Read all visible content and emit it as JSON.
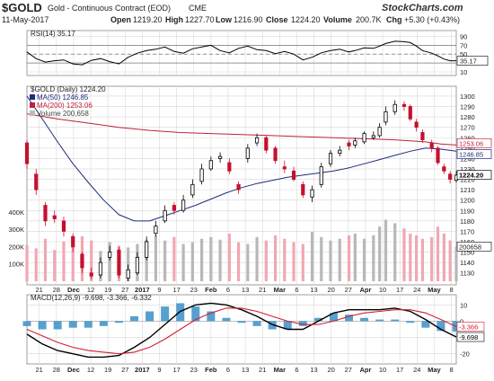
{
  "header": {
    "symbol": "$GOLD",
    "description": "Gold - Continuous Contract (EOD)",
    "exchange": "CME",
    "date": "11-May-2017",
    "open_label": "Open",
    "open": "1219.20",
    "high_label": "High",
    "high": "1227.70",
    "low_label": "Low",
    "low": "1216.90",
    "close_label": "Close",
    "close": "1224.20",
    "volume_label": "Volume",
    "volume": "200.7K",
    "change_label": "Chg",
    "change": "+5.30 (+0.43%)",
    "copyright": "© StockCharts.com",
    "logo_text": "StockCharts.com"
  },
  "chart_data": [
    {
      "type": "line",
      "panel": "rsi",
      "legend": [
        "RSI(14) 35.17"
      ],
      "y_ticks": [
        10,
        30,
        50,
        70,
        90
      ],
      "ylim": [
        10,
        95
      ],
      "reference_lines": [
        30,
        50,
        70
      ],
      "last_value_label": "35.17",
      "series": [
        {
          "name": "RSI(14)",
          "x": [
            0,
            3,
            6,
            9,
            12,
            15,
            18,
            21,
            24,
            27,
            30,
            33,
            36,
            39,
            42,
            45,
            48,
            51,
            54,
            57,
            60,
            63,
            66,
            69,
            72,
            75,
            78,
            81,
            84,
            87,
            90,
            93,
            96,
            99,
            102,
            105,
            107,
            110,
            113,
            115,
            117,
            120,
            123,
            125,
            127,
            129,
            132,
            134,
            136,
            138,
            140
          ],
          "values": [
            55,
            40,
            32,
            35,
            37,
            28,
            26,
            36,
            40,
            33,
            28,
            43,
            52,
            58,
            61,
            66,
            56,
            52,
            62,
            66,
            70,
            58,
            53,
            63,
            68,
            60,
            58,
            51,
            56,
            50,
            37,
            43,
            53,
            58,
            61,
            55,
            58,
            64,
            63,
            68,
            74,
            79,
            78,
            76,
            68,
            58,
            52,
            46,
            39,
            35,
            35
          ]
        }
      ]
    },
    {
      "type": "candlestick",
      "panel": "price",
      "legend": [
        "$GOLD (Daily) 1224.20",
        "MA(50) 1246.85",
        "MA(200) 1253.06",
        "Volume 200,658"
      ],
      "y_ticks": [
        1130,
        1140,
        1150,
        1160,
        1170,
        1180,
        1190,
        1200,
        1210,
        1220,
        1230,
        1240,
        1250,
        1260,
        1270,
        1280,
        1290,
        1300
      ],
      "ylim": [
        1122,
        1306
      ],
      "last_value_labels": [
        "1253.06",
        "1246.85",
        "1224.20"
      ],
      "volume_ticks": [
        "400K",
        "300K",
        "200K",
        "100K"
      ],
      "volume_last_label": "200658",
      "candles": {
        "x": [
          0,
          3,
          6,
          9,
          12,
          15,
          18,
          21,
          24,
          27,
          30,
          33,
          36,
          39,
          42,
          45,
          48,
          51,
          54,
          57,
          60,
          63,
          66,
          69,
          72,
          75,
          78,
          81,
          84,
          87,
          90,
          93,
          96,
          99,
          102,
          105,
          107,
          110,
          113,
          115,
          117,
          120,
          123,
          125,
          127,
          129,
          132,
          134,
          136,
          138,
          140
        ],
        "open": [
          1255,
          1225,
          1195,
          1185,
          1180,
          1165,
          1148,
          1130,
          1128,
          1145,
          1152,
          1125,
          1130,
          1145,
          1168,
          1180,
          1195,
          1190,
          1205,
          1218,
          1230,
          1240,
          1236,
          1215,
          1240,
          1255,
          1260,
          1250,
          1232,
          1228,
          1215,
          1203,
          1215,
          1235,
          1245,
          1255,
          1253,
          1256,
          1260,
          1262,
          1275,
          1285,
          1292,
          1290,
          1275,
          1265,
          1255,
          1250,
          1232,
          1225,
          1219
        ],
        "close": [
          1235,
          1210,
          1180,
          1182,
          1170,
          1155,
          1135,
          1127,
          1140,
          1150,
          1128,
          1133,
          1145,
          1160,
          1175,
          1190,
          1190,
          1200,
          1215,
          1230,
          1238,
          1242,
          1228,
          1210,
          1250,
          1260,
          1248,
          1238,
          1230,
          1220,
          1205,
          1210,
          1232,
          1245,
          1248,
          1252,
          1257,
          1264,
          1262,
          1270,
          1285,
          1292,
          1290,
          1278,
          1270,
          1258,
          1250,
          1236,
          1228,
          1220,
          1224
        ],
        "high": [
          1258,
          1230,
          1198,
          1190,
          1184,
          1168,
          1150,
          1135,
          1145,
          1156,
          1155,
          1138,
          1150,
          1165,
          1180,
          1195,
          1198,
          1205,
          1220,
          1235,
          1242,
          1246,
          1240,
          1218,
          1254,
          1264,
          1262,
          1252,
          1238,
          1232,
          1218,
          1214,
          1236,
          1248,
          1252,
          1258,
          1260,
          1266,
          1266,
          1274,
          1290,
          1296,
          1295,
          1292,
          1278,
          1268,
          1258,
          1252,
          1235,
          1228,
          1228
        ],
        "low": [
          1230,
          1205,
          1175,
          1178,
          1165,
          1150,
          1130,
          1124,
          1125,
          1142,
          1125,
          1122,
          1128,
          1142,
          1165,
          1178,
          1186,
          1188,
          1202,
          1215,
          1228,
          1236,
          1225,
          1206,
          1236,
          1252,
          1245,
          1235,
          1226,
          1218,
          1202,
          1198,
          1212,
          1232,
          1242,
          1248,
          1250,
          1254,
          1258,
          1260,
          1272,
          1282,
          1286,
          1276,
          1266,
          1255,
          1246,
          1234,
          1225,
          1216,
          1217
        ]
      },
      "volume_values": [
        210,
        190,
        245,
        180,
        230,
        215,
        260,
        235,
        175,
        225,
        205,
        195,
        215,
        240,
        265,
        235,
        255,
        215,
        225,
        245,
        255,
        240,
        275,
        225,
        215,
        255,
        235,
        265,
        245,
        225,
        215,
        285,
        255,
        235,
        245,
        265,
        275,
        245,
        265,
        315,
        355,
        335,
        305,
        275,
        265,
        245,
        255,
        315,
        275,
        235,
        200.7
      ],
      "series": [
        {
          "name": "MA(50)",
          "color": "#1f2a7a",
          "x": [
            0,
            5,
            10,
            15,
            20,
            25,
            30,
            35,
            40,
            45,
            50,
            55,
            60,
            65,
            70,
            75,
            80,
            85,
            90,
            95,
            100,
            105,
            110,
            115,
            120,
            125,
            130,
            135,
            140
          ],
          "values": [
            1300,
            1278,
            1256,
            1235,
            1217,
            1200,
            1186,
            1180,
            1180,
            1185,
            1190,
            1195,
            1201,
            1207,
            1212,
            1216,
            1219,
            1222,
            1224,
            1226,
            1228,
            1231,
            1235,
            1239,
            1243,
            1247,
            1250,
            1249,
            1247
          ]
        },
        {
          "name": "MA(200)",
          "color": "#c0203a",
          "x": [
            0,
            10,
            20,
            30,
            40,
            50,
            60,
            70,
            80,
            90,
            100,
            110,
            120,
            125,
            130,
            135,
            140
          ],
          "values": [
            1283,
            1278,
            1274,
            1270,
            1267,
            1265,
            1264,
            1263,
            1262,
            1261,
            1260,
            1259,
            1258,
            1257,
            1256,
            1254,
            1253
          ]
        }
      ]
    },
    {
      "type": "line",
      "panel": "macd",
      "legend": [
        "MACD(12,26,9) -9.698, -3.366, -6.332"
      ],
      "y_ticks": [
        10,
        0,
        -10,
        -20
      ],
      "ylim": [
        -24,
        14
      ],
      "last_value_labels": [
        "-3.366",
        "-9.698"
      ],
      "series": [
        {
          "name": "MACD",
          "color": "#000000",
          "x": [
            0,
            5,
            10,
            15,
            20,
            25,
            30,
            35,
            40,
            45,
            50,
            55,
            60,
            65,
            70,
            75,
            80,
            85,
            90,
            95,
            100,
            105,
            110,
            115,
            120,
            125,
            130,
            135,
            140
          ],
          "values": [
            -8,
            -14,
            -18,
            -20,
            -22,
            -22,
            -21,
            -16,
            -10,
            -2,
            6,
            10,
            11,
            10,
            7,
            3,
            -2,
            -5,
            -5,
            0,
            5,
            7,
            7,
            7,
            8,
            6,
            1,
            -5,
            -9.698
          ]
        },
        {
          "name": "Signal",
          "color": "#d02030",
          "x": [
            0,
            5,
            10,
            15,
            20,
            25,
            30,
            35,
            40,
            45,
            50,
            55,
            60,
            65,
            70,
            75,
            80,
            85,
            90,
            95,
            100,
            105,
            110,
            115,
            120,
            125,
            130,
            135,
            140
          ],
          "values": [
            -5,
            -9,
            -13,
            -16,
            -18,
            -19,
            -20,
            -19,
            -16,
            -11,
            -5,
            1,
            5,
            8,
            8,
            6,
            3,
            0,
            -2,
            -2,
            0,
            3,
            5,
            6,
            7,
            7,
            5,
            1,
            -3.366
          ]
        }
      ],
      "histogram": {
        "name": "Histogram",
        "color": "#3a8fc8",
        "x": [
          0,
          5,
          10,
          15,
          20,
          25,
          30,
          35,
          40,
          45,
          50,
          55,
          60,
          65,
          70,
          75,
          80,
          85,
          90,
          95,
          100,
          105,
          110,
          115,
          120,
          125,
          130,
          135,
          140
        ],
        "values": [
          -3,
          -5,
          -5,
          -4,
          -4,
          -3,
          -1,
          3,
          6,
          9,
          11,
          9,
          6,
          2,
          -1,
          -3,
          -5,
          -5,
          -3,
          2,
          5,
          4,
          2,
          1,
          1,
          -1,
          -4,
          -6,
          -6.332
        ]
      }
    }
  ],
  "x_axis": {
    "labels": [
      "21",
      "28",
      "Dec",
      "12",
      "19",
      "27",
      "2017",
      "9",
      "17",
      "23",
      "Feb",
      "6",
      "13",
      "21",
      "Mar",
      "6",
      "13",
      "20",
      "27",
      "Apr",
      "10",
      "17",
      "24",
      "May",
      "8"
    ],
    "bold_labels": [
      "Dec",
      "2017",
      "Feb",
      "Mar",
      "Apr",
      "May"
    ]
  },
  "colors": {
    "up_candle": "#000000",
    "down_candle": "#c4102f",
    "volume_up": "#b8b8b8",
    "volume_down": "#f0a8b2",
    "ma50": "#1f2a7a",
    "ma200": "#c0203a",
    "rsi_line": "#000000",
    "macd_line": "#000000",
    "signal_line": "#d02030",
    "histogram": "#3a8fc8",
    "grid": "#d8d8d8",
    "legend_box_ma50": "#1f2a7a",
    "legend_box_ma200": "#c0203a"
  }
}
